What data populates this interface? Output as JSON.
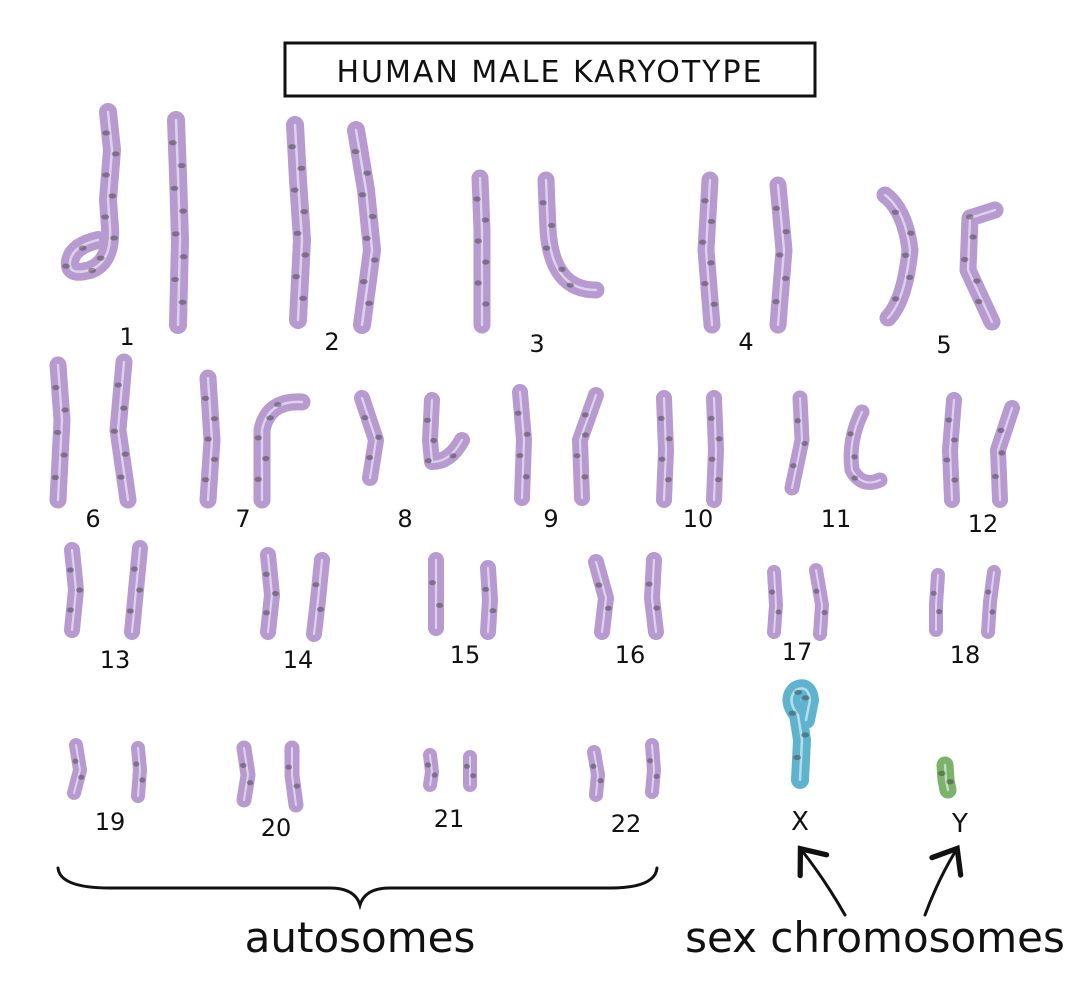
{
  "title": "HUMAN MALE KARYOTYPE",
  "colors": {
    "autosome": "#b79ad0",
    "autosome_stroke": "#8f73ad",
    "band": "#3a3a3a",
    "x_chromosome": "#5fb3cf",
    "y_chromosome": "#7cb36a",
    "ink": "#111111"
  },
  "pairs": [
    {
      "label": "1"
    },
    {
      "label": "2"
    },
    {
      "label": "3"
    },
    {
      "label": "4"
    },
    {
      "label": "5"
    },
    {
      "label": "6"
    },
    {
      "label": "7"
    },
    {
      "label": "8"
    },
    {
      "label": "9"
    },
    {
      "label": "10"
    },
    {
      "label": "11"
    },
    {
      "label": "12"
    },
    {
      "label": "13"
    },
    {
      "label": "14"
    },
    {
      "label": "15"
    },
    {
      "label": "16"
    },
    {
      "label": "17"
    },
    {
      "label": "18"
    },
    {
      "label": "19"
    },
    {
      "label": "20"
    },
    {
      "label": "21"
    },
    {
      "label": "22"
    }
  ],
  "sex_chromosomes": [
    {
      "label": "X"
    },
    {
      "label": "Y"
    }
  ],
  "group_labels": {
    "autosomes": "autosomes",
    "sex_chromosomes": "sex chromosomes"
  }
}
